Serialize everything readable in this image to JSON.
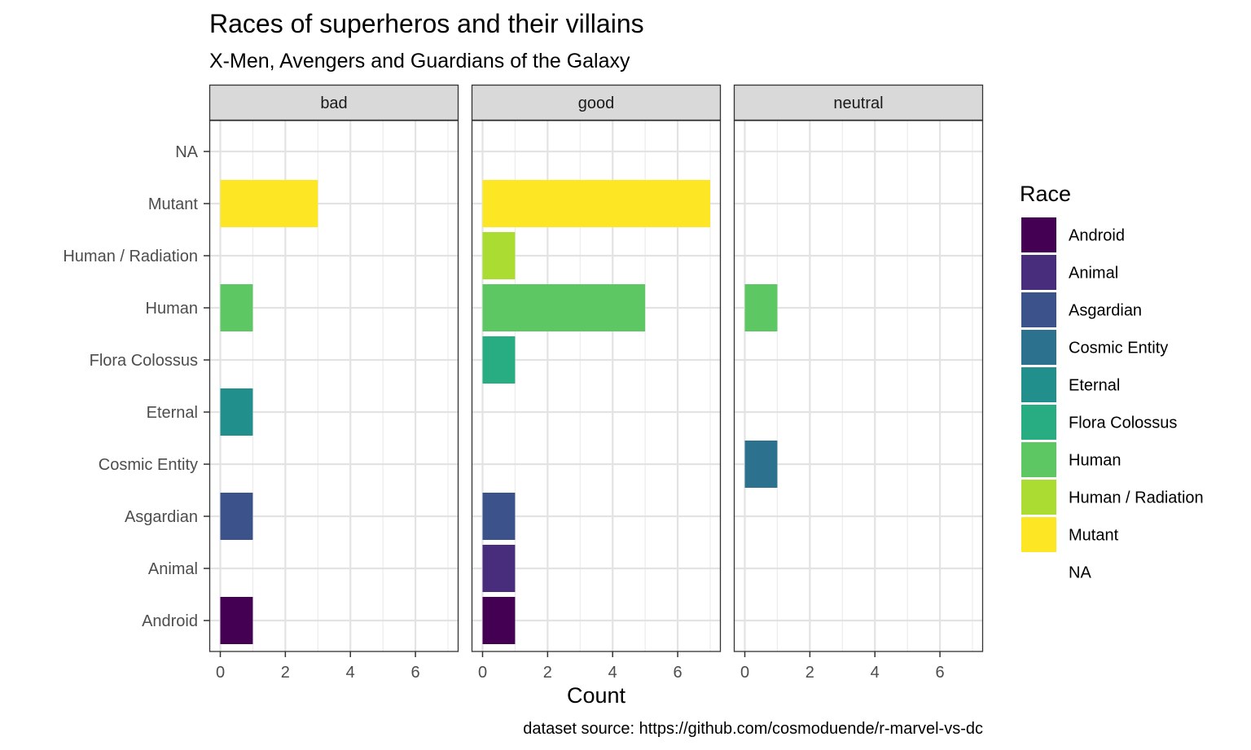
{
  "chart_data": {
    "type": "bar",
    "orientation": "horizontal",
    "faceted": true,
    "title": "Races of superheros and their villains",
    "subtitle": "X-Men, Avengers and Guardians of the Galaxy",
    "xlabel": "Count",
    "ylabel": "",
    "caption": "dataset source: https://github.com/cosmoduende/r-marvel-vs-dc",
    "xlim": [
      0,
      7
    ],
    "x_ticks": [
      0,
      2,
      4,
      6
    ],
    "grid": true,
    "categories": [
      "Android",
      "Animal",
      "Asgardian",
      "Cosmic Entity",
      "Eternal",
      "Flora Colossus",
      "Human",
      "Human / Radiation",
      "Mutant",
      "NA"
    ],
    "facets": [
      {
        "name": "bad",
        "values": [
          1,
          0,
          1,
          0,
          1,
          0,
          1,
          0,
          3,
          0
        ]
      },
      {
        "name": "good",
        "values": [
          1,
          1,
          1,
          0,
          0,
          1,
          5,
          1,
          7,
          0
        ]
      },
      {
        "name": "neutral",
        "values": [
          0,
          0,
          0,
          1,
          0,
          0,
          1,
          0,
          0,
          0
        ]
      }
    ],
    "legend": {
      "title": "Race",
      "position": "right",
      "items": [
        {
          "label": "Android",
          "color": "#440154"
        },
        {
          "label": "Animal",
          "color": "#472d7b"
        },
        {
          "label": "Asgardian",
          "color": "#3b528b"
        },
        {
          "label": "Cosmic Entity",
          "color": "#2c728e"
        },
        {
          "label": "Eternal",
          "color": "#21908c"
        },
        {
          "label": "Flora Colossus",
          "color": "#27ad81"
        },
        {
          "label": "Human",
          "color": "#5dc863"
        },
        {
          "label": "Human / Radiation",
          "color": "#aadc32"
        },
        {
          "label": "Mutant",
          "color": "#fde725"
        },
        {
          "label": "NA",
          "color": ""
        }
      ]
    }
  }
}
